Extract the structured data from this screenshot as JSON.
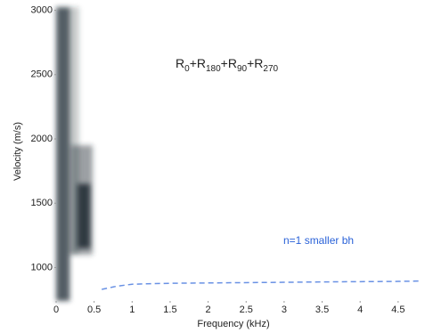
{
  "chart_data": {
    "type": "dispersion",
    "annotation": {
      "parts": [
        {
          "text": "R",
          "sub": "0"
        },
        {
          "text": "+R",
          "sub": "180"
        },
        {
          "text": "+R",
          "sub": "90"
        },
        {
          "text": "+R",
          "sub": "270"
        }
      ]
    },
    "x_label": "Frequency (kHz)",
    "y_label": "Velocity (m/s)",
    "xlim": [
      0,
      4.83
    ],
    "ylim": [
      740,
      3025
    ],
    "xticks": [
      0,
      0.5,
      1,
      1.5,
      2,
      2.5,
      3,
      3.5,
      4,
      4.5
    ],
    "yticks": [
      1000,
      1500,
      2000,
      2500,
      3000
    ],
    "image_color": "#1e2a33",
    "regions": [
      {
        "x": [
          0,
          0.18
        ],
        "y": [
          740,
          3025
        ],
        "intensity": 0.75
      },
      {
        "x": [
          0.18,
          0.3
        ],
        "y": [
          1100,
          3025
        ],
        "intensity": 0.25
      },
      {
        "x": [
          0.2,
          0.48
        ],
        "y": [
          1100,
          1950
        ],
        "intensity": 0.45
      },
      {
        "x": [
          0.28,
          0.45
        ],
        "y": [
          1150,
          1650
        ],
        "intensity": 0.85
      }
    ],
    "series": [
      {
        "name": "n=1 smaller bh",
        "color": "#2a62d8",
        "x": [
          0.6,
          0.8,
          1.0,
          1.3,
          1.6,
          2.0,
          2.4,
          3.0,
          3.5,
          4.0,
          4.5,
          4.8
        ],
        "values": [
          830,
          855,
          870,
          875,
          878,
          880,
          882,
          885,
          888,
          890,
          892,
          895
        ]
      }
    ]
  }
}
